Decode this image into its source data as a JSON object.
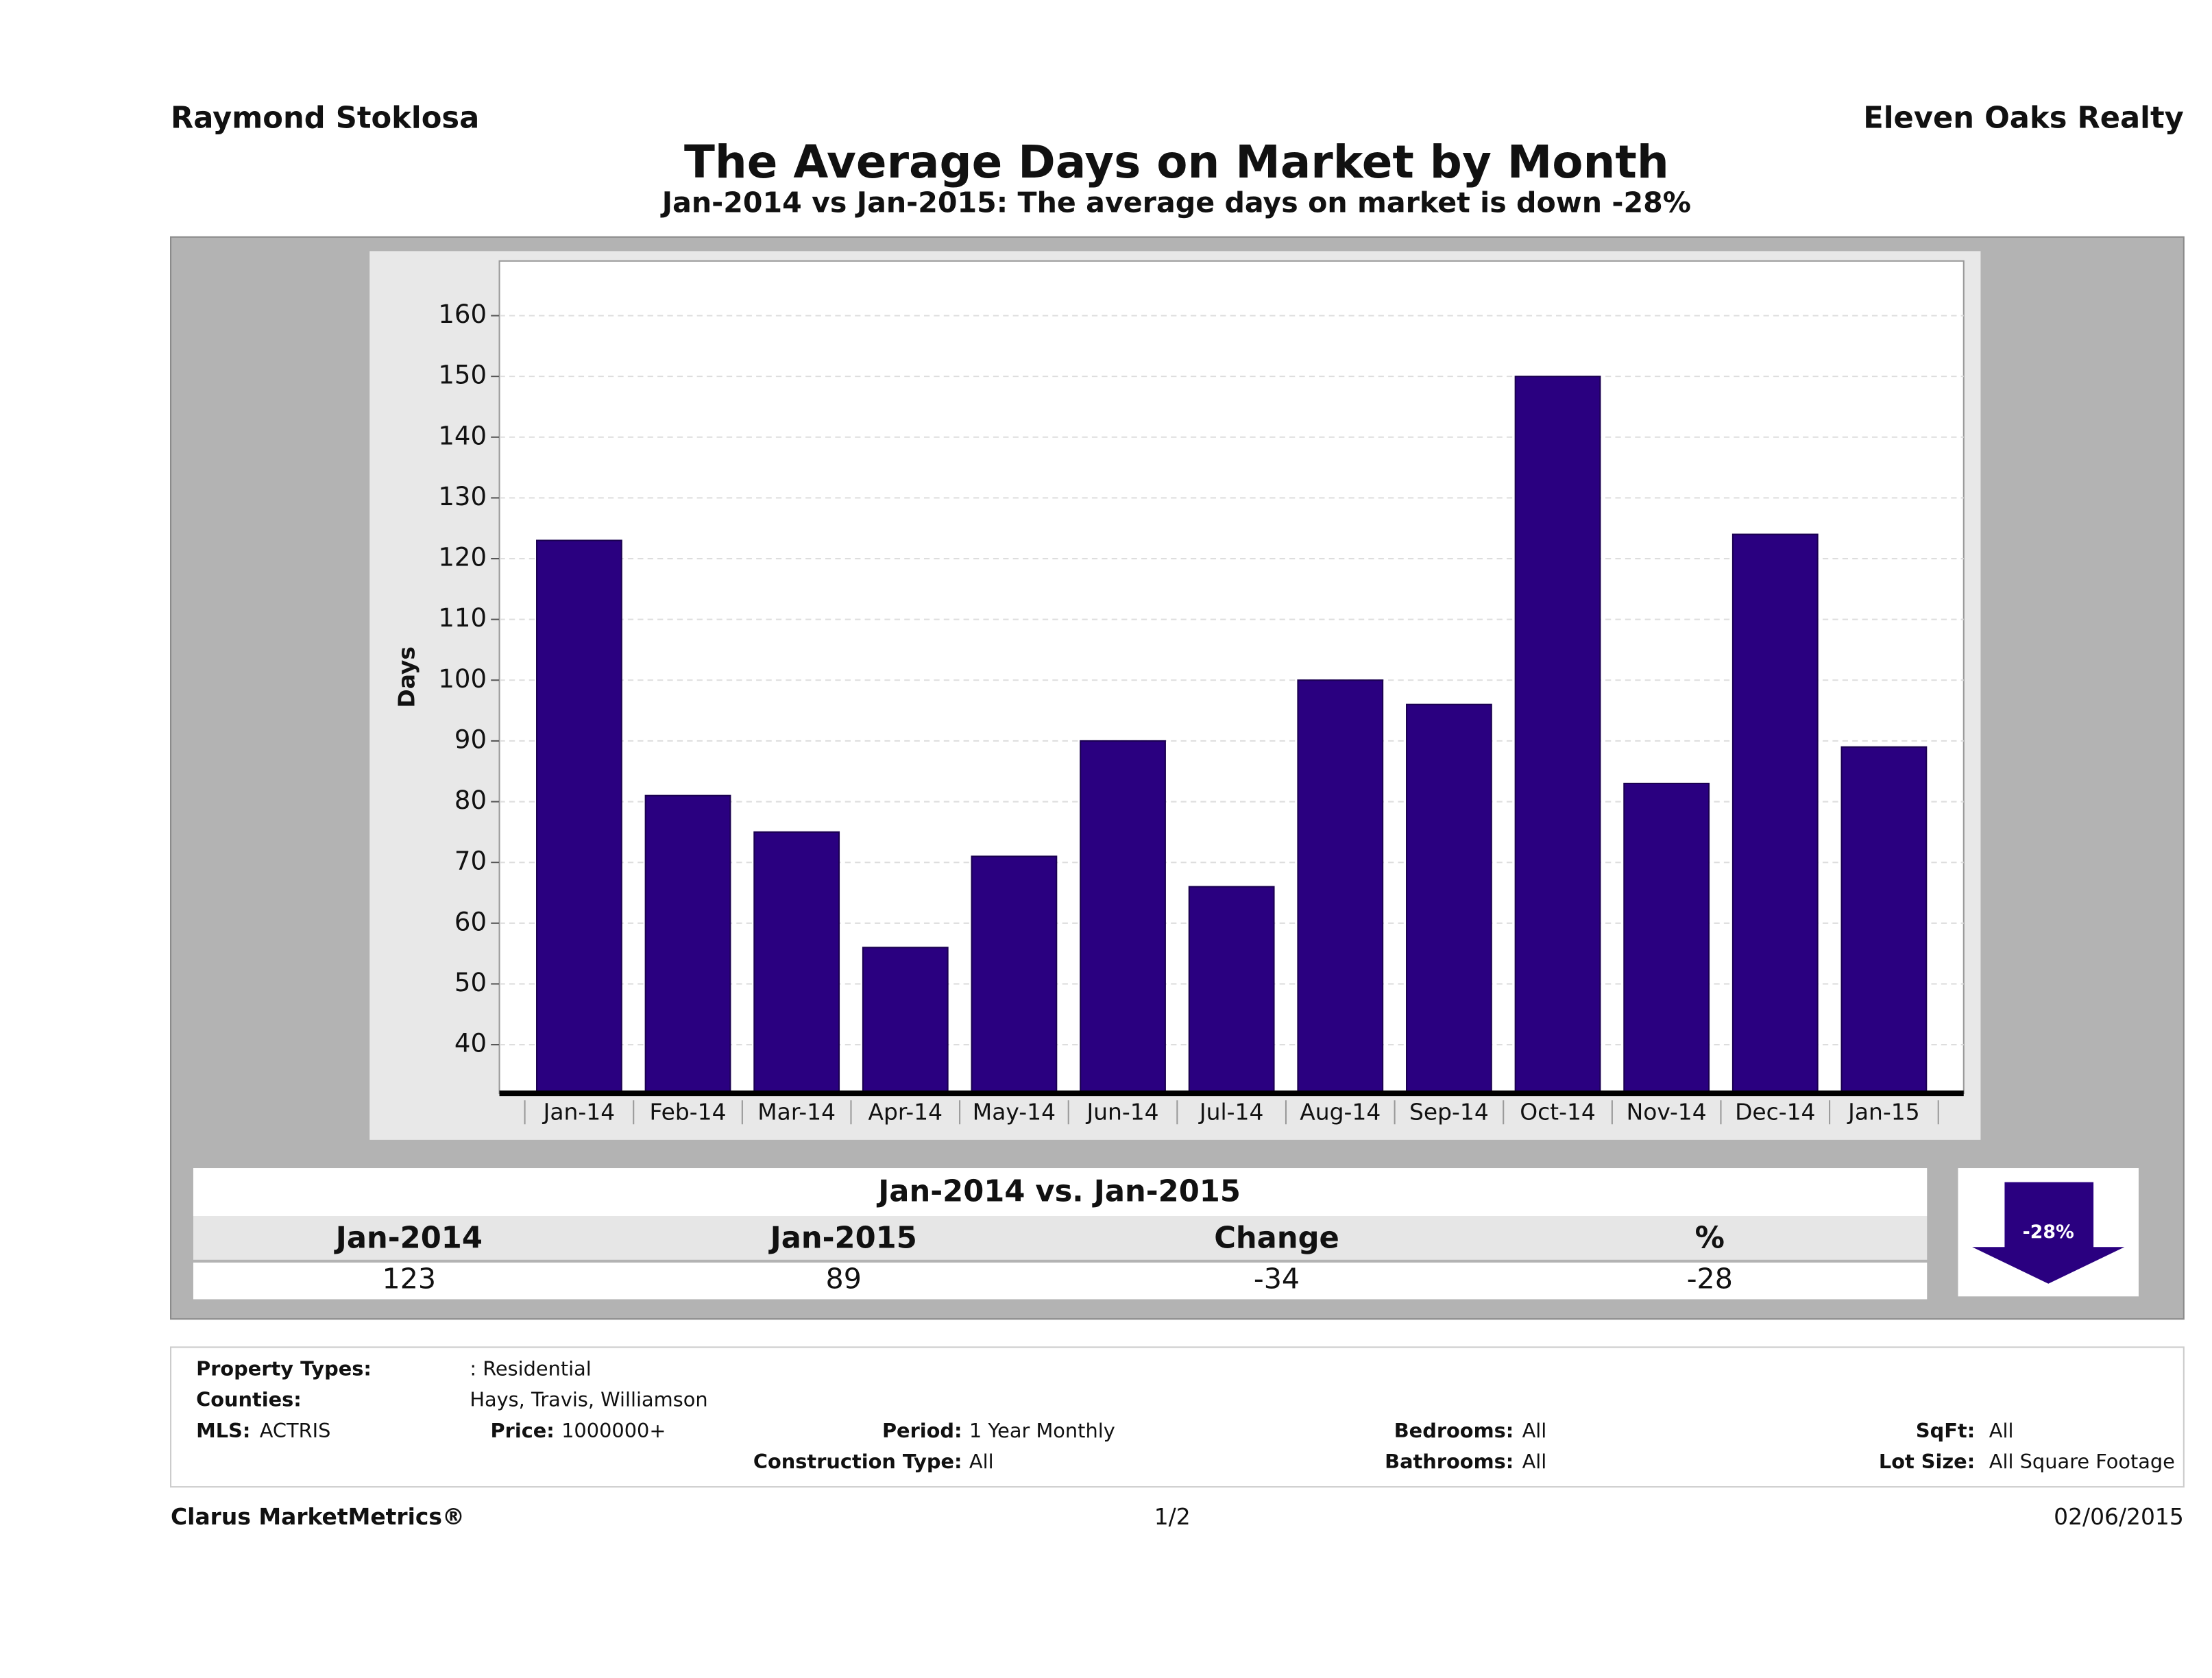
{
  "header": {
    "left": "Raymond Stoklosa",
    "right": "Eleven Oaks Realty"
  },
  "chart_data": {
    "type": "bar",
    "title": "The Average Days on Market by Month",
    "subtitle": "Jan-2014 vs Jan-2015: The average days on market is down -28%",
    "y_label": "Days",
    "categories": [
      "Jan-14",
      "Feb-14",
      "Mar-14",
      "Apr-14",
      "May-14",
      "Jun-14",
      "Jul-14",
      "Aug-14",
      "Sep-14",
      "Oct-14",
      "Nov-14",
      "Dec-14",
      "Jan-15"
    ],
    "values": [
      123,
      81,
      75,
      56,
      71,
      90,
      66,
      100,
      96,
      150,
      83,
      124,
      89
    ],
    "color": "#2a0080",
    "ylim": [
      32,
      169
    ],
    "yticks": [
      40,
      50,
      60,
      70,
      80,
      90,
      100,
      110,
      120,
      130,
      140,
      150,
      160
    ],
    "grid": true
  },
  "summary": {
    "title": "Jan-2014 vs. Jan-2015",
    "columns": [
      "Jan-2014",
      "Jan-2015",
      "Change",
      "%"
    ],
    "values": [
      123,
      89,
      -34,
      -28
    ],
    "badge": "-28%"
  },
  "filters": {
    "property_types": {
      "label": "Property Types:",
      "value": ": Residential"
    },
    "counties": {
      "label": "Counties:",
      "value": "Hays, Travis, Williamson"
    },
    "mls": {
      "label": "MLS:",
      "value": "ACTRIS"
    },
    "price": {
      "label": "Price:",
      "value": "1000000+"
    },
    "period": {
      "label": "Period:",
      "value": "1 Year Monthly"
    },
    "construction_type": {
      "label": "Construction Type:",
      "value": "All"
    },
    "bedrooms": {
      "label": "Bedrooms:",
      "value": "All"
    },
    "bathrooms": {
      "label": "Bathrooms:",
      "value": "All"
    },
    "sqft": {
      "label": "SqFt:",
      "value": "All"
    },
    "lot_size": {
      "label": "Lot Size:",
      "value": "All Square Footage"
    }
  },
  "footer": {
    "left": "Clarus MarketMetrics®",
    "center": "1/2",
    "right": "02/06/2015"
  }
}
